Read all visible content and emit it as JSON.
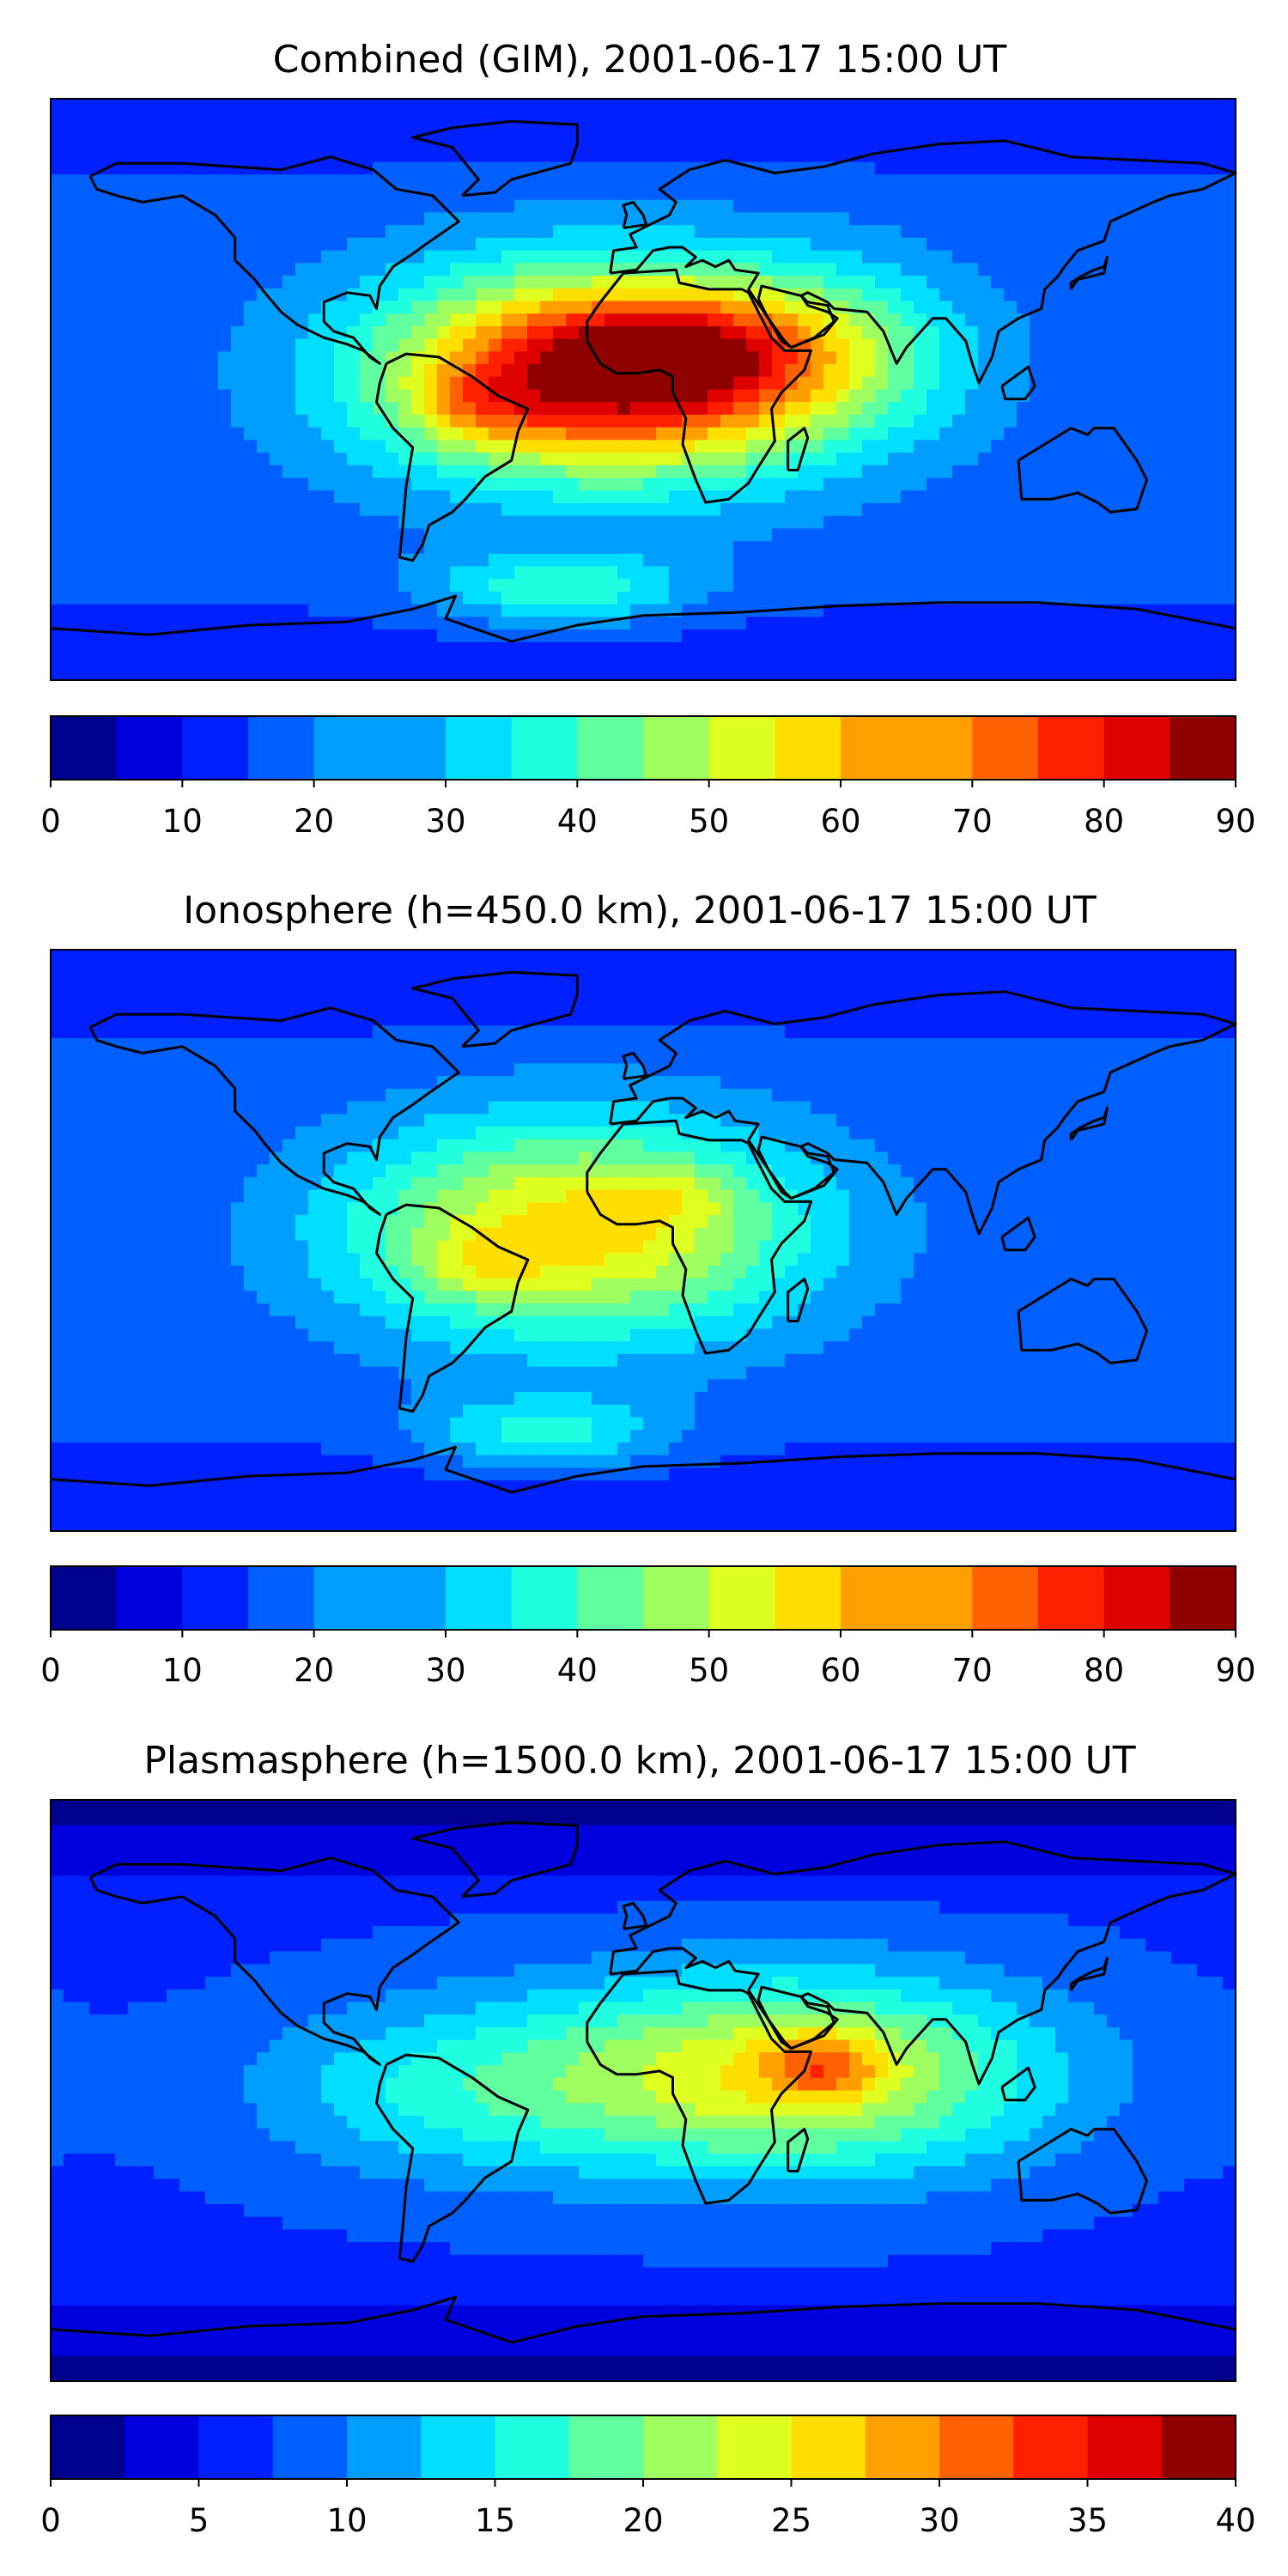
{
  "colors": {
    "jet": [
      "#00008f",
      "#0000df",
      "#0020ff",
      "#0060ff",
      "#009fff",
      "#00dfff",
      "#20ffdf",
      "#60ff9f",
      "#9fff60",
      "#dfff20",
      "#ffdf00",
      "#ff9f00",
      "#ff6000",
      "#ff2000",
      "#df0000",
      "#8f0000"
    ],
    "coastline": "#000000",
    "frame": "#000000"
  },
  "chart_data": [
    {
      "type": "heatmap",
      "title": "Combined (GIM), 2001-06-17 15:00 UT",
      "colorbar": {
        "ticks": [
          "0",
          "10",
          "20",
          "30",
          "40",
          "50",
          "60",
          "70",
          "80",
          "90"
        ],
        "range": [
          0,
          90
        ],
        "step": 5
      },
      "blobs": [
        {
          "lon": -10,
          "lat": 5,
          "slon": 48,
          "slat": 22,
          "amp": 62
        },
        {
          "lon": 10,
          "lat": 12,
          "slon": 22,
          "slat": 10,
          "amp": 14
        },
        {
          "lon": -50,
          "lat": -5,
          "slon": 14,
          "slat": 8,
          "amp": 10
        },
        {
          "lon": 55,
          "lat": 12,
          "slon": 30,
          "slat": 18,
          "amp": 14
        },
        {
          "lon": -25,
          "lat": -62,
          "slon": 28,
          "slat": 8,
          "amp": 18
        }
      ],
      "base": 17
    },
    {
      "type": "heatmap",
      "title": "Ionosphere  (h=450.0 km), 2001-06-17 15:00 UT",
      "colorbar": {
        "ticks": [
          "0",
          "10",
          "20",
          "30",
          "40",
          "50",
          "60",
          "70",
          "80",
          "90"
        ],
        "range": [
          0,
          90
        ],
        "step": 5
      },
      "blobs": [
        {
          "lon": -20,
          "lat": 3,
          "slon": 50,
          "slat": 24,
          "amp": 37
        },
        {
          "lon": -52,
          "lat": -8,
          "slon": 14,
          "slat": 7,
          "amp": 8
        },
        {
          "lon": 10,
          "lat": 14,
          "slon": 14,
          "slat": 6,
          "amp": 7
        },
        {
          "lon": -30,
          "lat": -60,
          "slon": 26,
          "slat": 8,
          "amp": 16
        }
      ],
      "base": 16
    },
    {
      "type": "heatmap",
      "title": "Plasmasphere (h=1500.0 km), 2001-06-17 15:00 UT",
      "colorbar": {
        "ticks": [
          "0",
          "5",
          "10",
          "15",
          "20",
          "25",
          "30",
          "35",
          "40"
        ],
        "range": [
          0,
          40
        ],
        "step": 2.5
      },
      "blobs": [
        {
          "lon": 45,
          "lat": 5,
          "slon": 55,
          "slat": 22,
          "amp": 18
        },
        {
          "lon": 55,
          "lat": 8,
          "slon": 12,
          "slat": 7,
          "amp": 8
        },
        {
          "lon": -60,
          "lat": 0,
          "slon": 45,
          "slat": 20,
          "amp": 7
        }
      ],
      "base": 7
    }
  ]
}
